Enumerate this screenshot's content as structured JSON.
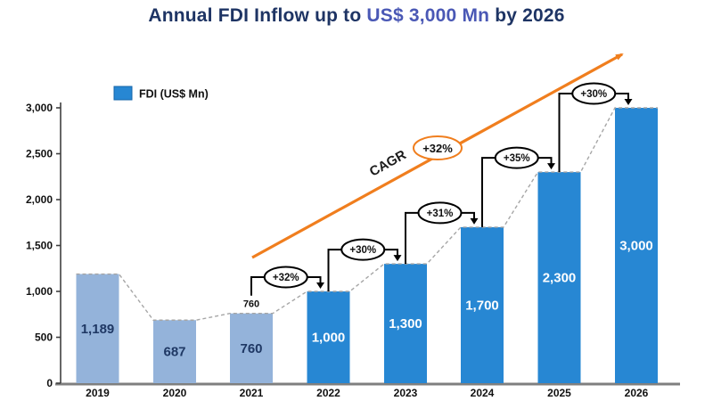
{
  "title": {
    "prefix": "Annual FDI Inflow up to",
    "highlight": "US$ 3,000 Mn",
    "suffix": "by 2026"
  },
  "colors": {
    "title_navy": "#1e3464",
    "title_highlight": "#4a58b5",
    "light_bar": "#94b3da",
    "dark_bar": "#2787d3",
    "orange": "#f07e1e",
    "dashed_line": "#a6a6a6",
    "x_axis": "#7f7f7f",
    "y_axis": "#3f3f3f",
    "label_on_light": "#1f3864",
    "label_on_dark": "#ffffff",
    "text_black": "#111111"
  },
  "chart_data": {
    "type": "bar",
    "title": "Annual FDI Inflow up to US$ 3,000 Mn by 2026",
    "categories": [
      "2019",
      "2020",
      "2021",
      "2022",
      "2023",
      "2024",
      "2025",
      "2026"
    ],
    "values": [
      1189,
      687,
      760,
      1000,
      1300,
      1700,
      2300,
      3000
    ],
    "value_labels": [
      "1,189",
      "687",
      "760",
      "1,000",
      "1,300",
      "1,700",
      "2,300",
      "3,000"
    ],
    "bar_styles": [
      "light",
      "light",
      "light",
      "dark",
      "dark",
      "dark",
      "dark",
      "dark"
    ],
    "ylim": [
      0,
      3000
    ],
    "yticks": {
      "values": [
        0,
        500,
        1000,
        1500,
        2000,
        2500,
        3000
      ],
      "labels": [
        "0",
        "500",
        "1,000",
        "1,500",
        "2,000",
        "2,500",
        "3,000"
      ]
    },
    "grid": false,
    "legend": {
      "label": "FDI (US$ Mn)",
      "position": "top-left"
    },
    "growth_annotations": [
      {
        "from": "2021",
        "to": "2022",
        "label": "+32%"
      },
      {
        "from": "2022",
        "to": "2023",
        "label": "+30%"
      },
      {
        "from": "2023",
        "to": "2024",
        "label": "+31%"
      },
      {
        "from": "2024",
        "to": "2025",
        "label": "+35%"
      },
      {
        "from": "2025",
        "to": "2026",
        "label": "+30%"
      }
    ],
    "point_label": {
      "category": "2021",
      "text": "760"
    },
    "trendline": {
      "label": "CAGR",
      "badge": "+32%",
      "style": "orange-arrow"
    }
  }
}
